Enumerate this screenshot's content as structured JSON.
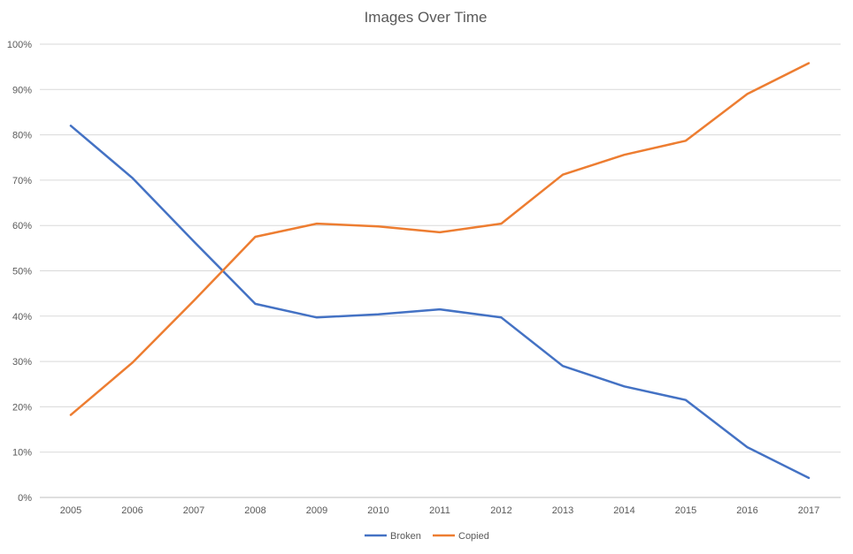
{
  "chart_data": {
    "type": "line",
    "title": "Images Over Time",
    "xlabel": "",
    "ylabel": "",
    "x": [
      "2005",
      "2006",
      "2007",
      "2008",
      "2009",
      "2010",
      "2011",
      "2012",
      "2013",
      "2014",
      "2015",
      "2016",
      "2017"
    ],
    "ylim": [
      0,
      100
    ],
    "y_ticks": [
      "0%",
      "10%",
      "20%",
      "30%",
      "40%",
      "50%",
      "60%",
      "70%",
      "80%",
      "90%",
      "100%"
    ],
    "grid": true,
    "legend_position": "bottom",
    "series": [
      {
        "name": "Broken",
        "color": "#4472C4",
        "values": [
          82,
          70.5,
          56.5,
          42.7,
          39.7,
          40.4,
          41.5,
          39.7,
          29,
          24.5,
          21.5,
          11.1,
          4.3
        ]
      },
      {
        "name": "Copied",
        "color": "#ED7D31",
        "values": [
          18.2,
          29.7,
          43.4,
          57.5,
          60.4,
          59.8,
          58.5,
          60.4,
          71.2,
          75.6,
          78.7,
          89,
          95.8
        ]
      }
    ]
  }
}
